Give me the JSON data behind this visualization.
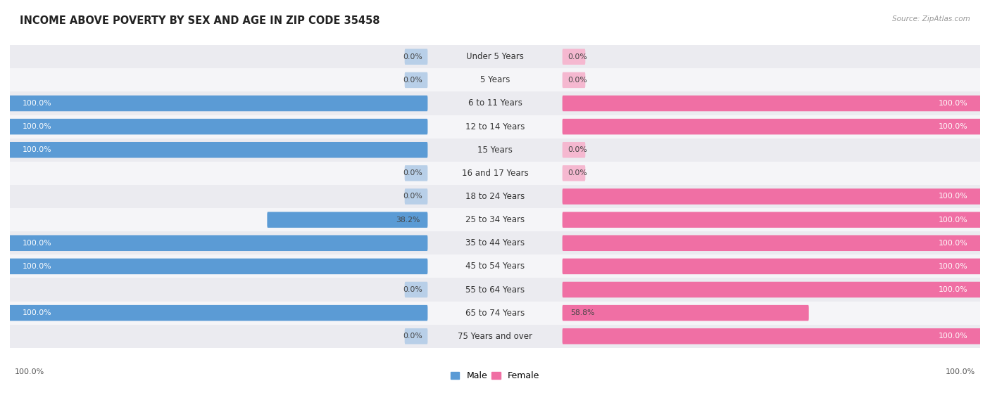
{
  "title": "INCOME ABOVE POVERTY BY SEX AND AGE IN ZIP CODE 35458",
  "source": "Source: ZipAtlas.com",
  "categories": [
    "Under 5 Years",
    "5 Years",
    "6 to 11 Years",
    "12 to 14 Years",
    "15 Years",
    "16 and 17 Years",
    "18 to 24 Years",
    "25 to 34 Years",
    "35 to 44 Years",
    "45 to 54 Years",
    "55 to 64 Years",
    "65 to 74 Years",
    "75 Years and over"
  ],
  "male_values": [
    0.0,
    0.0,
    100.0,
    100.0,
    100.0,
    0.0,
    0.0,
    38.2,
    100.0,
    100.0,
    0.0,
    100.0,
    0.0
  ],
  "female_values": [
    0.0,
    0.0,
    100.0,
    100.0,
    0.0,
    0.0,
    100.0,
    100.0,
    100.0,
    100.0,
    100.0,
    58.8,
    100.0
  ],
  "male_color_full": "#5b9bd5",
  "male_color_light": "#b8cfe8",
  "female_color_full": "#f06fa4",
  "female_color_light": "#f5b8d0",
  "row_bg_even": "#ebebf0",
  "row_bg_odd": "#f5f5f8",
  "title_fontsize": 10.5,
  "label_fontsize": 8.5,
  "value_fontsize": 7.8,
  "legend_fontsize": 9,
  "background_color": "#ffffff"
}
